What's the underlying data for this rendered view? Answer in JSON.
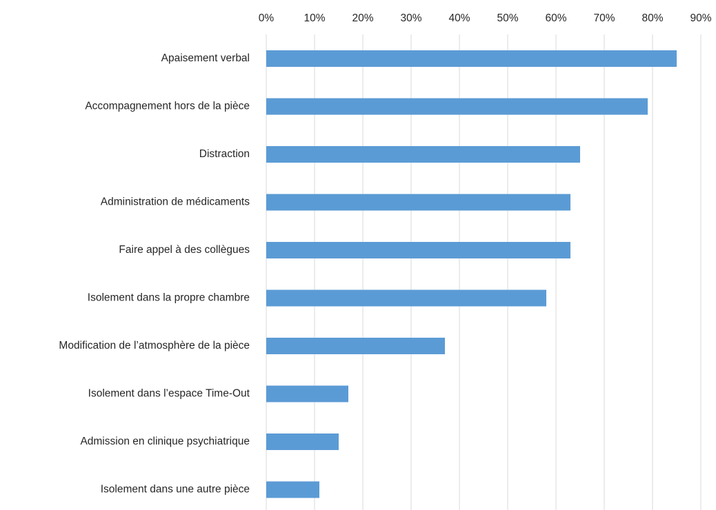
{
  "chart_data": {
    "type": "barh",
    "categories": [
      "Apaisement verbal",
      "Accompagnement hors de la pièce",
      "Distraction",
      "Administration de médicaments",
      "Faire appel à des collègues",
      "Isolement dans la propre chambre",
      "Modification de l’atmosphère de la pièce",
      "Isolement dans l’espace Time-Out",
      "Admission en clinique psychiatrique",
      "Isolement dans une autre pièce"
    ],
    "values": [
      85,
      79,
      65,
      63,
      63,
      58,
      37,
      17,
      15,
      11
    ],
    "color": "#5b9bd5",
    "xlim": [
      0,
      90
    ],
    "xticks": [
      {
        "value": 0,
        "label": "0%"
      },
      {
        "value": 10,
        "label": "10%"
      },
      {
        "value": 20,
        "label": "20%"
      },
      {
        "value": 30,
        "label": "30%"
      },
      {
        "value": 40,
        "label": "40%"
      },
      {
        "value": 50,
        "label": "50%"
      },
      {
        "value": 60,
        "label": "60%"
      },
      {
        "value": 70,
        "label": "70%"
      },
      {
        "value": 80,
        "label": "80%"
      },
      {
        "value": 90,
        "label": "90%"
      }
    ],
    "grid": true
  }
}
